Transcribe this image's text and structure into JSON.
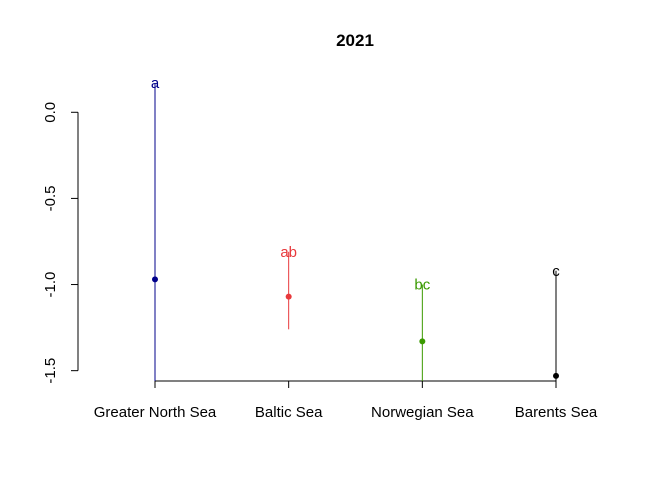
{
  "chart_data": {
    "type": "scatter",
    "title": "2021",
    "xlabel": "",
    "ylabel": "",
    "categories": [
      "Greater North Sea",
      "Baltic Sea",
      "Norwegian Sea",
      "Barents Sea"
    ],
    "ylim": [
      -1.56,
      0.17
    ],
    "yticks": [
      {
        "value": 0.0,
        "label": "0.0"
      },
      {
        "value": -0.5,
        "label": "-0.5"
      },
      {
        "value": -1.0,
        "label": "-1.0"
      },
      {
        "value": -1.5,
        "label": "-1.5"
      }
    ],
    "points": [
      {
        "category": "Greater North Sea",
        "value": -0.97,
        "lower": -1.56,
        "upper": 0.17,
        "letter": "a",
        "color": "#00008B"
      },
      {
        "category": "Baltic Sea",
        "value": -1.07,
        "lower": -1.26,
        "upper": -0.81,
        "letter": "ab",
        "color": "#E8393C"
      },
      {
        "category": "Norwegian Sea",
        "value": -1.33,
        "lower": -1.56,
        "upper": -1.0,
        "letter": "bc",
        "color": "#3A9A00"
      },
      {
        "category": "Barents Sea",
        "value": -1.53,
        "lower": -1.56,
        "upper": -0.92,
        "letter": "c",
        "color": "#000000"
      }
    ],
    "grid": false,
    "legend": "none"
  }
}
